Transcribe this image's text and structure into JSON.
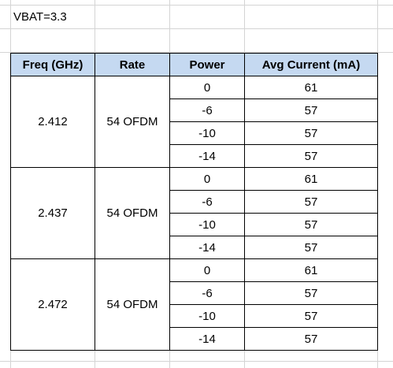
{
  "note": {
    "text": "VBAT=3.3"
  },
  "table": {
    "headers": [
      "Freq (GHz)",
      "Rate",
      "Power",
      "Avg Current (mA)"
    ],
    "groups": [
      {
        "freq": "2.412",
        "rate": "54 OFDM",
        "rows": [
          {
            "power": "0",
            "current": "61"
          },
          {
            "power": "-6",
            "current": "57"
          },
          {
            "power": "-10",
            "current": "57"
          },
          {
            "power": "-14",
            "current": "57"
          }
        ]
      },
      {
        "freq": "2.437",
        "rate": "54 OFDM",
        "rows": [
          {
            "power": "0",
            "current": "61"
          },
          {
            "power": "-6",
            "current": "57"
          },
          {
            "power": "-10",
            "current": "57"
          },
          {
            "power": "-14",
            "current": "57"
          }
        ]
      },
      {
        "freq": "2.472",
        "rate": "54 OFDM",
        "rows": [
          {
            "power": "0",
            "current": "61"
          },
          {
            "power": "-6",
            "current": "57"
          },
          {
            "power": "-10",
            "current": "57"
          },
          {
            "power": "-14",
            "current": "57"
          }
        ]
      }
    ]
  },
  "colors": {
    "header_fill": "#c5d9f1",
    "gridline": "#d4d4d4",
    "border": "#000000"
  }
}
